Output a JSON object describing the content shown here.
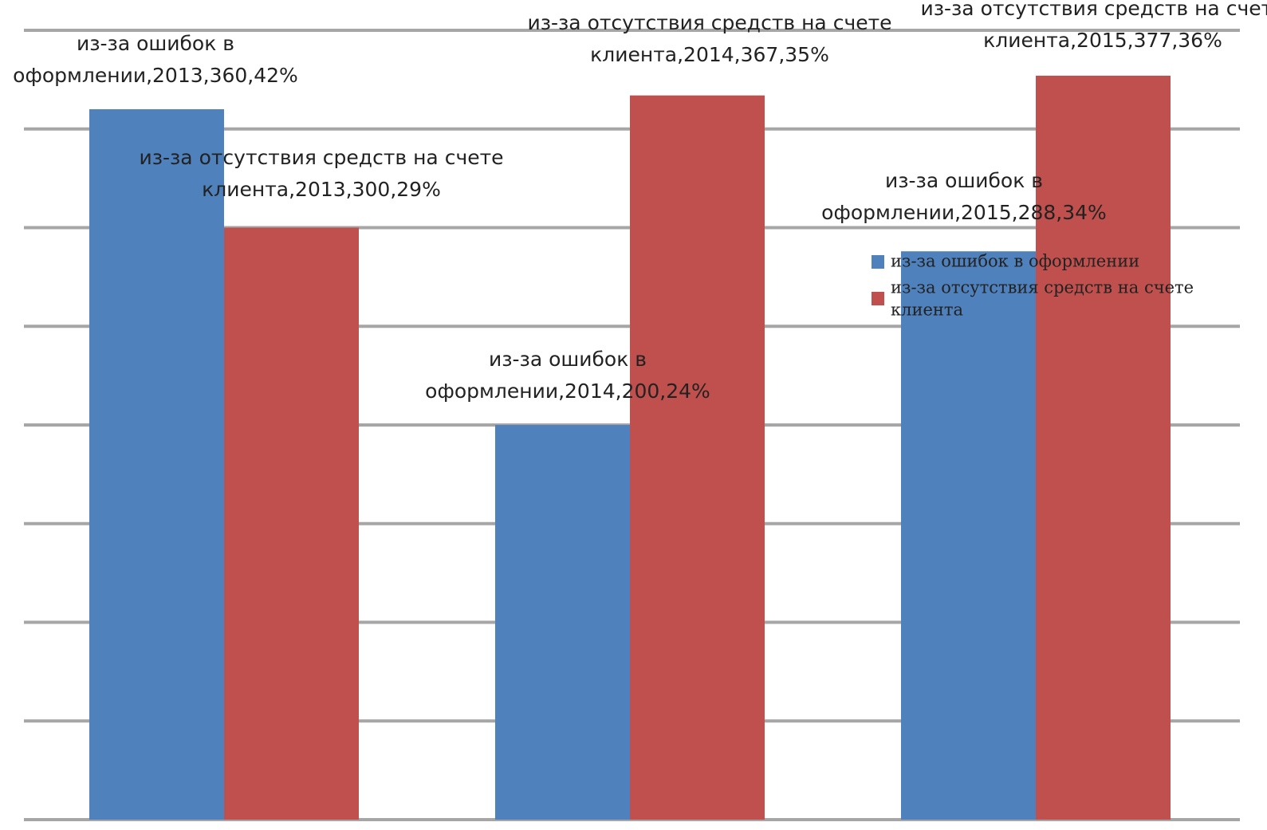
{
  "colors": {
    "series_1": "#4f81bd",
    "series_2": "#c0504d",
    "gridline": "#a6a6a6",
    "background": "#ffffff",
    "label_text": "#222222"
  },
  "chart_data": {
    "type": "bar",
    "categories": [
      "2013",
      "2014",
      "2015"
    ],
    "series": [
      {
        "name": "из-за ошибок в оформлении",
        "values": [
          360,
          200,
          288
        ]
      },
      {
        "name": "из-за отсутствия средств на счете клиента",
        "values": [
          300,
          367,
          377
        ]
      }
    ],
    "data_labels": [
      [
        [
          "из-за ошибок в",
          "оформлении,2013,360,42%"
        ],
        [
          "из-за ошибок в",
          "оформлении,2014,200,24%"
        ],
        [
          "из-за ошибок в",
          "оформлении,2015,288,34%"
        ]
      ],
      [
        [
          "из-за отсутствия средств на счете",
          "клиента,2013,300,29%"
        ],
        [
          "из-за отсутствия средств на счете",
          "клиента,2014,367,35%"
        ],
        [
          "из-за отсутствия средств на счете",
          "клиента,2015,377,36%"
        ]
      ]
    ],
    "legend_entries": [
      [
        "из-за ошибок в оформлении"
      ],
      [
        "из-за отсутствия средств на счете",
        "клиента"
      ]
    ],
    "title": "",
    "xlabel": "",
    "ylabel": "",
    "ylim": [
      0,
      400
    ],
    "grid": true,
    "axis_labels_visible": false,
    "legend_position": "right"
  }
}
